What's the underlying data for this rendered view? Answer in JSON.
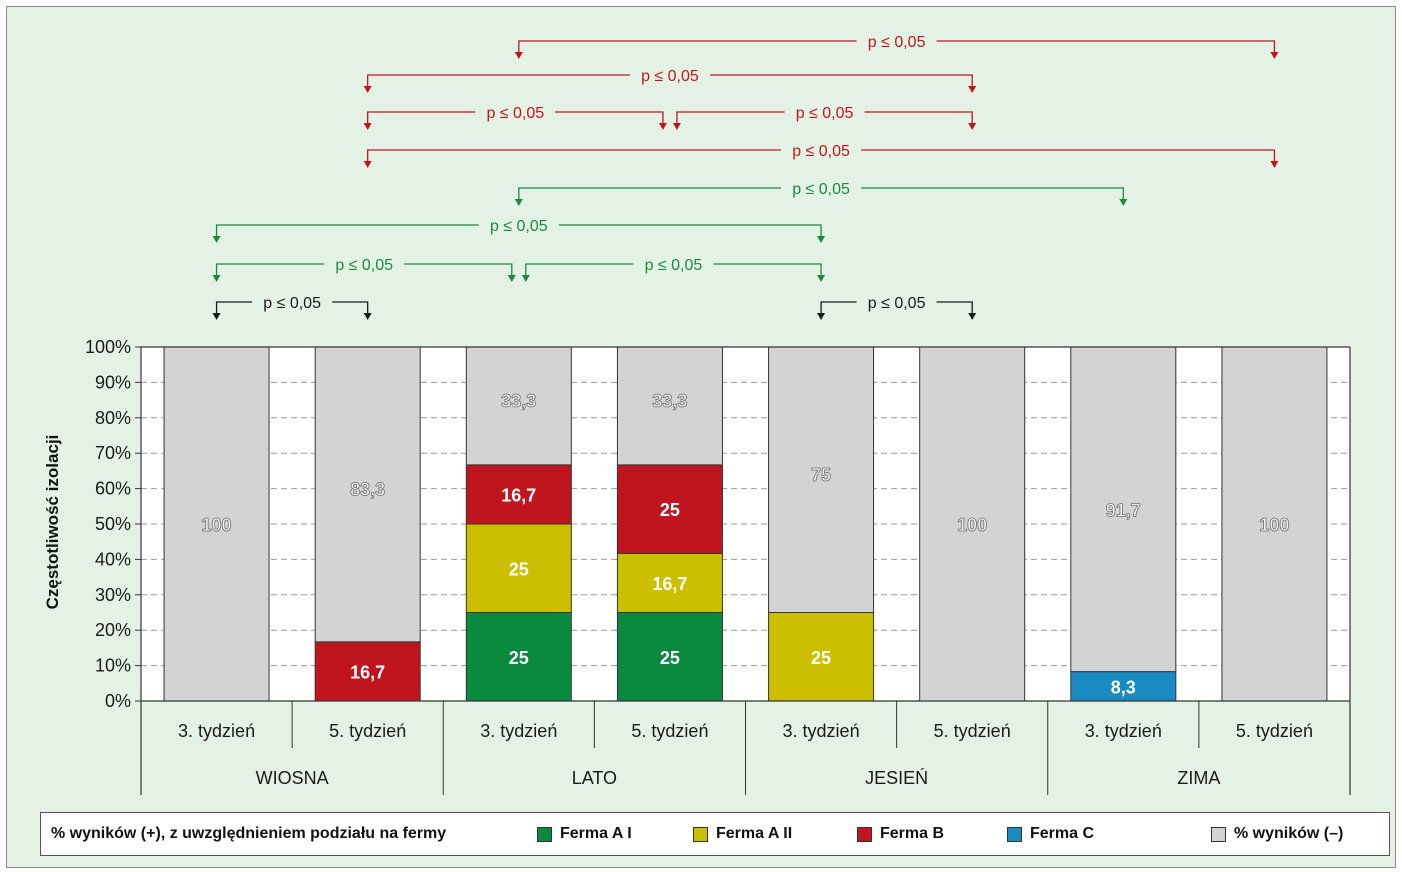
{
  "chart_data": {
    "type": "bar",
    "stacked": true,
    "ylabel": "Częstotliwość izolacji",
    "yticks": [
      "0%",
      "10%",
      "20%",
      "30%",
      "40%",
      "50%",
      "60%",
      "70%",
      "80%",
      "90%",
      "100%"
    ],
    "ylim": [
      0,
      100
    ],
    "grid": "dashed horizontal",
    "categories": [
      "3. tydzień",
      "5. tydzień",
      "3. tydzień",
      "5. tydzień",
      "3. tydzień",
      "5. tydzień",
      "3. tydzień",
      "5. tydzień"
    ],
    "groups": [
      "WIOSNA",
      "LATO",
      "JESIEŃ",
      "ZIMA"
    ],
    "series": [
      {
        "name": "Ferma  A I",
        "color": "#0a8a3e",
        "values": [
          0,
          0,
          25,
          25,
          0,
          0,
          0,
          0
        ],
        "labels": [
          "",
          "",
          "25",
          "25",
          "",
          "",
          "",
          ""
        ]
      },
      {
        "name": "Ferma  A II",
        "color": "#cbbf00",
        "values": [
          0,
          0,
          25,
          16.7,
          25,
          0,
          0,
          0
        ],
        "labels": [
          "",
          "",
          "25",
          "16,7",
          "25",
          "",
          "",
          ""
        ]
      },
      {
        "name": "Ferma  B",
        "color": "#c0151f",
        "values": [
          0,
          16.7,
          16.7,
          25,
          0,
          0,
          0,
          0
        ],
        "labels": [
          "",
          "16,7",
          "16,7",
          "25",
          "",
          "",
          "",
          ""
        ]
      },
      {
        "name": "Ferma  C",
        "color": "#1a8bc2",
        "values": [
          0,
          0,
          0,
          0,
          0,
          0,
          8.3,
          0
        ],
        "labels": [
          "",
          "",
          "",
          "",
          "",
          "",
          "8,3",
          ""
        ]
      },
      {
        "name": "% wyników (–)",
        "color": "#d3d3d5",
        "values": [
          100,
          83.3,
          33.3,
          33.3,
          75,
          100,
          91.7,
          100
        ],
        "labels": [
          "100",
          "83,3",
          "33,3",
          "33,3",
          "75",
          "100",
          "91,7",
          "100"
        ]
      }
    ],
    "significance": [
      {
        "from": 2,
        "to": 7,
        "label": "p ≤ 0,05",
        "color": "#c0151f"
      },
      {
        "from": 1,
        "to": 5,
        "label": "p ≤ 0,05",
        "color": "#c0151f"
      },
      {
        "from": 1,
        "to": 3,
        "label": "p ≤ 0,05",
        "color": "#c0151f"
      },
      {
        "from": 3,
        "to": 5,
        "label": "p ≤ 0,05",
        "color": "#c0151f"
      },
      {
        "from": 1,
        "to": 7,
        "label": "p ≤ 0,05",
        "color": "#c0151f"
      },
      {
        "from": 2,
        "to": 6,
        "label": "p ≤ 0,05",
        "color": "#1a8a3e"
      },
      {
        "from": 0,
        "to": 4,
        "label": "p ≤ 0,05",
        "color": "#1a8a3e"
      },
      {
        "from": 0,
        "to": 2,
        "label": "p ≤ 0,05",
        "color": "#1a8a3e"
      },
      {
        "from": 2,
        "to": 4,
        "label": "p ≤ 0,05",
        "color": "#1a8a3e"
      },
      {
        "from": 0,
        "to": 1,
        "label": "p ≤ 0,05",
        "color": "#1a1a1a"
      },
      {
        "from": 4,
        "to": 5,
        "label": "p ≤ 0,05",
        "color": "#1a1a1a"
      }
    ]
  },
  "legend": {
    "title": "% wyników (+), z uwzględnieniem podziału na fermy",
    "items": [
      {
        "label": "Ferma  A I",
        "color": "#0a8a3e"
      },
      {
        "label": "Ferma  A II",
        "color": "#cbbf00"
      },
      {
        "label": "Ferma  B",
        "color": "#c0151f"
      },
      {
        "label": "Ferma  C",
        "color": "#1a8bc2"
      },
      {
        "label": "% wyników (–)",
        "color": "#d3d3d5"
      }
    ]
  }
}
